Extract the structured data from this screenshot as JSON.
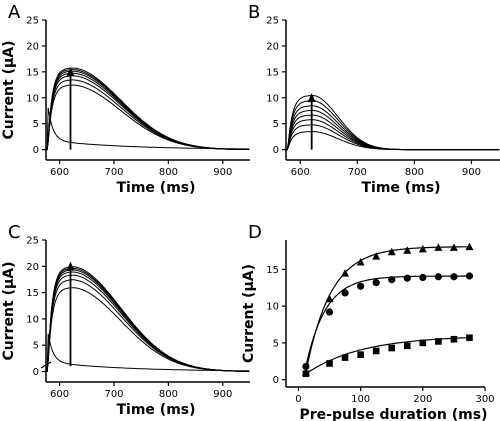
{
  "chart_data": [
    {
      "panel": "A",
      "type": "line",
      "xlabel": "Time (ms)",
      "ylabel": "Current (μA)",
      "xlim": [
        575,
        950
      ],
      "ylim": [
        -2,
        25
      ],
      "xticks": [
        600,
        700,
        800,
        900
      ],
      "yticks": [
        0,
        5,
        10,
        15,
        20,
        25
      ],
      "series": [
        {
          "peak": 15.8
        },
        {
          "peak": 15.5
        },
        {
          "peak": 15.2
        },
        {
          "peak": 14.8
        },
        {
          "peak": 14.3
        },
        {
          "peak": 13.5
        },
        {
          "peak": 12.5
        },
        {
          "peak": 7.0,
          "decay_only": true
        }
      ],
      "arrow": {
        "x": 620,
        "y_from": 0,
        "y_to": 15.5
      }
    },
    {
      "panel": "B",
      "type": "line",
      "xlabel": "Time (ms)",
      "ylabel": "",
      "xlim": [
        575,
        950
      ],
      "ylim": [
        -2,
        25
      ],
      "xticks": [
        600,
        700,
        800,
        900
      ],
      "yticks": [
        0,
        5,
        10,
        15,
        20,
        25
      ],
      "series": [
        {
          "peak": 10.5
        },
        {
          "peak": 9.5
        },
        {
          "peak": 8.5
        },
        {
          "peak": 7.6
        },
        {
          "peak": 6.7
        },
        {
          "peak": 5.8
        },
        {
          "peak": 4.8
        },
        {
          "peak": 3.5
        }
      ],
      "arrow": {
        "x": 620,
        "y_from": 0,
        "y_to": 10.5
      }
    },
    {
      "panel": "C",
      "type": "line",
      "xlabel": "Time (ms)",
      "ylabel": "Current (μA)",
      "xlim": [
        575,
        950
      ],
      "ylim": [
        -2,
        25
      ],
      "xticks": [
        600,
        700,
        800,
        900
      ],
      "yticks": [
        0,
        5,
        10,
        15,
        20,
        25
      ],
      "series": [
        {
          "peak": 20.0
        },
        {
          "peak": 19.7
        },
        {
          "peak": 19.4
        },
        {
          "peak": 19.0
        },
        {
          "peak": 18.4
        },
        {
          "peak": 17.5
        },
        {
          "peak": 16.0
        },
        {
          "peak": 6.0,
          "decay_only": true
        }
      ],
      "arrow": {
        "x": 620,
        "y_from": 1,
        "y_to": 20.5
      }
    },
    {
      "panel": "D",
      "type": "scatter",
      "xlabel": "Pre-pulse duration (ms)",
      "ylabel": "Current (μA)",
      "xlim": [
        -20,
        300
      ],
      "ylim": [
        -1,
        19
      ],
      "xticks": [
        0,
        100,
        200,
        300
      ],
      "yticks": [
        0,
        5,
        10,
        15
      ],
      "series": [
        {
          "marker": "triangle",
          "x": [
            12,
            50,
            75,
            100,
            125,
            150,
            175,
            200,
            225,
            250,
            275
          ],
          "y": [
            1.0,
            11.0,
            14.5,
            16.0,
            16.8,
            17.4,
            17.6,
            17.8,
            18.0,
            18.0,
            18.1
          ]
        },
        {
          "marker": "circle",
          "x": [
            12,
            50,
            75,
            100,
            125,
            150,
            175,
            200,
            225,
            250,
            275
          ],
          "y": [
            1.8,
            9.2,
            11.8,
            12.7,
            13.2,
            13.6,
            13.8,
            13.9,
            14.0,
            14.0,
            14.1
          ]
        },
        {
          "marker": "square",
          "x": [
            12,
            50,
            75,
            100,
            125,
            150,
            175,
            200,
            225,
            250,
            275
          ],
          "y": [
            0.8,
            2.2,
            3.0,
            3.4,
            3.9,
            4.3,
            4.6,
            5.0,
            5.2,
            5.5,
            5.7
          ]
        }
      ]
    }
  ]
}
